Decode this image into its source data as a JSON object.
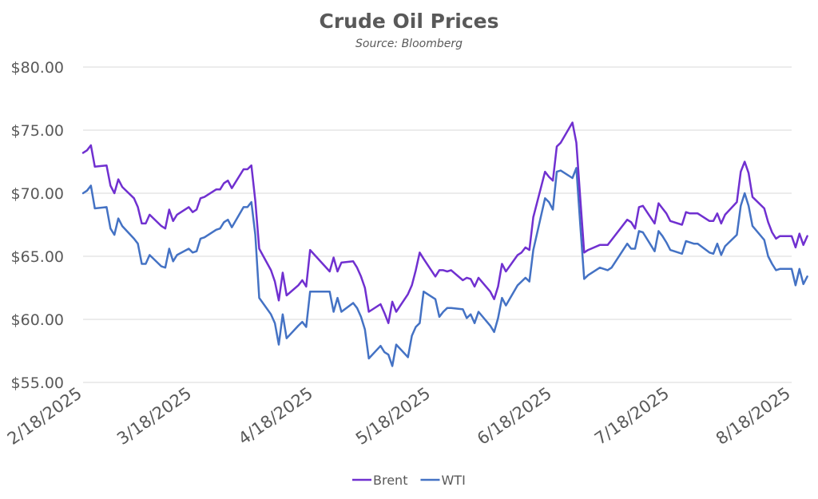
{
  "chart_data": {
    "type": "line",
    "title": "Crude Oil Prices",
    "subtitle": "Source: Bloomberg",
    "xlabel": "",
    "ylabel": "",
    "x_tick_labels": [
      "2/18/2025",
      "3/18/2025",
      "4/18/2025",
      "5/18/2025",
      "6/18/2025",
      "7/18/2025",
      "8/18/2025"
    ],
    "x_tick_dates": [
      "2025-02-18",
      "2025-03-18",
      "2025-04-18",
      "2025-05-18",
      "2025-06-18",
      "2025-07-18",
      "2025-08-18"
    ],
    "y_tick_labels": [
      "$55.00",
      "$60.00",
      "$65.00",
      "$70.00",
      "$75.00",
      "$80.00"
    ],
    "ylim": [
      55,
      80
    ],
    "xlim": [
      "2025-02-18",
      "2025-08-18"
    ],
    "grid": "horizontal",
    "legend_position": "bottom",
    "series": [
      {
        "name": "Brent",
        "color": "#7030d0",
        "points": [
          [
            "2025-02-18",
            73.2
          ],
          [
            "2025-02-19",
            73.4
          ],
          [
            "2025-02-20",
            73.8
          ],
          [
            "2025-02-21",
            72.1
          ],
          [
            "2025-02-24",
            72.2
          ],
          [
            "2025-02-25",
            70.6
          ],
          [
            "2025-02-26",
            70.0
          ],
          [
            "2025-02-27",
            71.1
          ],
          [
            "2025-02-28",
            70.5
          ],
          [
            "2025-03-03",
            69.6
          ],
          [
            "2025-03-04",
            68.9
          ],
          [
            "2025-03-05",
            67.6
          ],
          [
            "2025-03-06",
            67.6
          ],
          [
            "2025-03-07",
            68.3
          ],
          [
            "2025-03-10",
            67.4
          ],
          [
            "2025-03-11",
            67.2
          ],
          [
            "2025-03-12",
            68.7
          ],
          [
            "2025-03-13",
            67.8
          ],
          [
            "2025-03-14",
            68.3
          ],
          [
            "2025-03-17",
            68.9
          ],
          [
            "2025-03-18",
            68.5
          ],
          [
            "2025-03-19",
            68.7
          ],
          [
            "2025-03-20",
            69.6
          ],
          [
            "2025-03-21",
            69.7
          ],
          [
            "2025-03-24",
            70.3
          ],
          [
            "2025-03-25",
            70.3
          ],
          [
            "2025-03-26",
            70.8
          ],
          [
            "2025-03-27",
            71.0
          ],
          [
            "2025-03-28",
            70.4
          ],
          [
            "2025-03-31",
            71.9
          ],
          [
            "2025-04-01",
            71.9
          ],
          [
            "2025-04-02",
            72.2
          ],
          [
            "2025-04-03",
            69.4
          ],
          [
            "2025-04-04",
            65.6
          ],
          [
            "2025-04-07",
            63.9
          ],
          [
            "2025-04-08",
            63.0
          ],
          [
            "2025-04-09",
            61.5
          ],
          [
            "2025-04-10",
            63.7
          ],
          [
            "2025-04-11",
            61.9
          ],
          [
            "2025-04-14",
            62.7
          ],
          [
            "2025-04-15",
            63.1
          ],
          [
            "2025-04-16",
            62.6
          ],
          [
            "2025-04-17",
            65.5
          ],
          [
            "2025-04-22",
            63.8
          ],
          [
            "2025-04-23",
            64.9
          ],
          [
            "2025-04-24",
            63.8
          ],
          [
            "2025-04-25",
            64.5
          ],
          [
            "2025-04-28",
            64.6
          ],
          [
            "2025-04-29",
            64.1
          ],
          [
            "2025-04-30",
            63.4
          ],
          [
            "2025-05-01",
            62.5
          ],
          [
            "2025-05-02",
            60.6
          ],
          [
            "2025-05-05",
            61.2
          ],
          [
            "2025-05-06",
            60.5
          ],
          [
            "2025-05-07",
            59.7
          ],
          [
            "2025-05-08",
            61.4
          ],
          [
            "2025-05-09",
            60.6
          ],
          [
            "2025-05-12",
            62.0
          ],
          [
            "2025-05-13",
            62.7
          ],
          [
            "2025-05-14",
            63.9
          ],
          [
            "2025-05-15",
            65.3
          ],
          [
            "2025-05-16",
            64.8
          ],
          [
            "2025-05-19",
            63.4
          ],
          [
            "2025-05-20",
            63.9
          ],
          [
            "2025-05-21",
            63.9
          ],
          [
            "2025-05-22",
            63.8
          ],
          [
            "2025-05-23",
            63.9
          ],
          [
            "2025-05-26",
            63.1
          ],
          [
            "2025-05-27",
            63.3
          ],
          [
            "2025-05-28",
            63.2
          ],
          [
            "2025-05-29",
            62.6
          ],
          [
            "2025-05-30",
            63.3
          ],
          [
            "2025-06-02",
            62.2
          ],
          [
            "2025-06-03",
            61.6
          ],
          [
            "2025-06-04",
            62.6
          ],
          [
            "2025-06-05",
            64.4
          ],
          [
            "2025-06-06",
            63.8
          ],
          [
            "2025-06-09",
            65.1
          ],
          [
            "2025-06-10",
            65.3
          ],
          [
            "2025-06-11",
            65.7
          ],
          [
            "2025-06-12",
            65.5
          ],
          [
            "2025-06-13",
            68.1
          ],
          [
            "2025-06-16",
            71.7
          ],
          [
            "2025-06-17",
            71.3
          ],
          [
            "2025-06-18",
            71.0
          ],
          [
            "2025-06-19",
            73.7
          ],
          [
            "2025-06-20",
            74.0
          ],
          [
            "2025-06-23",
            75.6
          ],
          [
            "2025-06-24",
            74.0
          ],
          [
            "2025-06-25",
            69.6
          ],
          [
            "2025-06-26",
            65.3
          ],
          [
            "2025-06-27",
            65.5
          ],
          [
            "2025-06-30",
            65.9
          ],
          [
            "2025-07-01",
            65.9
          ],
          [
            "2025-07-02",
            65.9
          ],
          [
            "2025-07-03",
            66.3
          ],
          [
            "2025-07-07",
            67.9
          ],
          [
            "2025-07-08",
            67.7
          ],
          [
            "2025-07-09",
            67.2
          ],
          [
            "2025-07-10",
            68.9
          ],
          [
            "2025-07-11",
            69.0
          ],
          [
            "2025-07-14",
            67.6
          ],
          [
            "2025-07-15",
            69.2
          ],
          [
            "2025-07-16",
            68.8
          ],
          [
            "2025-07-17",
            68.4
          ],
          [
            "2025-07-18",
            67.8
          ],
          [
            "2025-07-21",
            67.5
          ],
          [
            "2025-07-22",
            68.5
          ],
          [
            "2025-07-23",
            68.4
          ],
          [
            "2025-07-24",
            68.4
          ],
          [
            "2025-07-25",
            68.4
          ],
          [
            "2025-07-28",
            67.8
          ],
          [
            "2025-07-29",
            67.8
          ],
          [
            "2025-07-30",
            68.4
          ],
          [
            "2025-07-31",
            67.6
          ],
          [
            "2025-08-01",
            68.3
          ],
          [
            "2025-08-04",
            69.3
          ],
          [
            "2025-08-05",
            71.7
          ],
          [
            "2025-08-06",
            72.5
          ],
          [
            "2025-08-07",
            71.6
          ],
          [
            "2025-08-08",
            69.7
          ],
          [
            "2025-08-11",
            68.8
          ],
          [
            "2025-08-12",
            67.7
          ],
          [
            "2025-08-13",
            66.9
          ],
          [
            "2025-08-14",
            66.4
          ],
          [
            "2025-08-15",
            66.6
          ],
          [
            "2025-08-18",
            66.6
          ],
          [
            "2025-08-19",
            65.7
          ],
          [
            "2025-08-20",
            66.8
          ],
          [
            "2025-08-21",
            65.9
          ],
          [
            "2025-08-22",
            66.6
          ]
        ]
      },
      {
        "name": "WTI",
        "color": "#4472c4",
        "points": [
          [
            "2025-02-18",
            70.0
          ],
          [
            "2025-02-19",
            70.2
          ],
          [
            "2025-02-20",
            70.6
          ],
          [
            "2025-02-21",
            68.8
          ],
          [
            "2025-02-24",
            68.9
          ],
          [
            "2025-02-25",
            67.2
          ],
          [
            "2025-02-26",
            66.7
          ],
          [
            "2025-02-27",
            68.0
          ],
          [
            "2025-02-28",
            67.4
          ],
          [
            "2025-03-03",
            66.4
          ],
          [
            "2025-03-04",
            66.0
          ],
          [
            "2025-03-05",
            64.4
          ],
          [
            "2025-03-06",
            64.4
          ],
          [
            "2025-03-07",
            65.1
          ],
          [
            "2025-03-10",
            64.2
          ],
          [
            "2025-03-11",
            64.1
          ],
          [
            "2025-03-12",
            65.6
          ],
          [
            "2025-03-13",
            64.6
          ],
          [
            "2025-03-14",
            65.1
          ],
          [
            "2025-03-17",
            65.6
          ],
          [
            "2025-03-18",
            65.3
          ],
          [
            "2025-03-19",
            65.4
          ],
          [
            "2025-03-20",
            66.4
          ],
          [
            "2025-03-21",
            66.5
          ],
          [
            "2025-03-24",
            67.1
          ],
          [
            "2025-03-25",
            67.2
          ],
          [
            "2025-03-26",
            67.7
          ],
          [
            "2025-03-27",
            67.9
          ],
          [
            "2025-03-28",
            67.3
          ],
          [
            "2025-03-31",
            68.9
          ],
          [
            "2025-04-01",
            68.9
          ],
          [
            "2025-04-02",
            69.3
          ],
          [
            "2025-04-03",
            66.7
          ],
          [
            "2025-04-04",
            61.7
          ],
          [
            "2025-04-07",
            60.4
          ],
          [
            "2025-04-08",
            59.7
          ],
          [
            "2025-04-09",
            58.0
          ],
          [
            "2025-04-10",
            60.4
          ],
          [
            "2025-04-11",
            58.5
          ],
          [
            "2025-04-14",
            59.5
          ],
          [
            "2025-04-15",
            59.8
          ],
          [
            "2025-04-16",
            59.4
          ],
          [
            "2025-04-17",
            62.2
          ],
          [
            "2025-04-22",
            62.2
          ],
          [
            "2025-04-23",
            60.6
          ],
          [
            "2025-04-24",
            61.7
          ],
          [
            "2025-04-25",
            60.6
          ],
          [
            "2025-04-28",
            61.3
          ],
          [
            "2025-04-29",
            60.9
          ],
          [
            "2025-04-30",
            60.2
          ],
          [
            "2025-05-01",
            59.2
          ],
          [
            "2025-05-02",
            56.9
          ],
          [
            "2025-05-05",
            57.9
          ],
          [
            "2025-05-06",
            57.4
          ],
          [
            "2025-05-07",
            57.2
          ],
          [
            "2025-05-08",
            56.3
          ],
          [
            "2025-05-09",
            58.0
          ],
          [
            "2025-05-12",
            57.0
          ],
          [
            "2025-05-13",
            58.7
          ],
          [
            "2025-05-14",
            59.4
          ],
          [
            "2025-05-15",
            59.7
          ],
          [
            "2025-05-16",
            62.2
          ],
          [
            "2025-05-19",
            61.6
          ],
          [
            "2025-05-20",
            60.2
          ],
          [
            "2025-05-21",
            60.6
          ],
          [
            "2025-05-22",
            60.9
          ],
          [
            "2025-05-23",
            60.9
          ],
          [
            "2025-05-26",
            60.8
          ],
          [
            "2025-05-27",
            60.1
          ],
          [
            "2025-05-28",
            60.4
          ],
          [
            "2025-05-29",
            59.7
          ],
          [
            "2025-05-30",
            60.6
          ],
          [
            "2025-06-02",
            59.5
          ],
          [
            "2025-06-03",
            59.0
          ],
          [
            "2025-06-04",
            60.1
          ],
          [
            "2025-06-05",
            61.7
          ],
          [
            "2025-06-06",
            61.1
          ],
          [
            "2025-06-09",
            62.7
          ],
          [
            "2025-06-10",
            63.0
          ],
          [
            "2025-06-11",
            63.3
          ],
          [
            "2025-06-12",
            63.0
          ],
          [
            "2025-06-13",
            65.5
          ],
          [
            "2025-06-16",
            69.6
          ],
          [
            "2025-06-17",
            69.3
          ],
          [
            "2025-06-18",
            68.7
          ],
          [
            "2025-06-19",
            71.7
          ],
          [
            "2025-06-20",
            71.8
          ],
          [
            "2025-06-23",
            71.2
          ],
          [
            "2025-06-24",
            72.0
          ],
          [
            "2025-06-25",
            67.5
          ],
          [
            "2025-06-26",
            63.2
          ],
          [
            "2025-06-27",
            63.5
          ],
          [
            "2025-06-30",
            64.1
          ],
          [
            "2025-07-01",
            64.0
          ],
          [
            "2025-07-02",
            63.9
          ],
          [
            "2025-07-03",
            64.1
          ],
          [
            "2025-07-07",
            66.0
          ],
          [
            "2025-07-08",
            65.6
          ],
          [
            "2025-07-09",
            65.6
          ],
          [
            "2025-07-10",
            67.0
          ],
          [
            "2025-07-11",
            66.9
          ],
          [
            "2025-07-14",
            65.4
          ],
          [
            "2025-07-15",
            67.0
          ],
          [
            "2025-07-16",
            66.6
          ],
          [
            "2025-07-17",
            66.1
          ],
          [
            "2025-07-18",
            65.5
          ],
          [
            "2025-07-21",
            65.2
          ],
          [
            "2025-07-22",
            66.2
          ],
          [
            "2025-07-23",
            66.1
          ],
          [
            "2025-07-24",
            66.0
          ],
          [
            "2025-07-25",
            66.0
          ],
          [
            "2025-07-28",
            65.3
          ],
          [
            "2025-07-29",
            65.2
          ],
          [
            "2025-07-30",
            66.0
          ],
          [
            "2025-07-31",
            65.1
          ],
          [
            "2025-08-01",
            65.8
          ],
          [
            "2025-08-04",
            66.7
          ],
          [
            "2025-08-05",
            69.0
          ],
          [
            "2025-08-06",
            70.0
          ],
          [
            "2025-08-07",
            69.0
          ],
          [
            "2025-08-08",
            67.4
          ],
          [
            "2025-08-11",
            66.3
          ],
          [
            "2025-08-12",
            65.0
          ],
          [
            "2025-08-13",
            64.4
          ],
          [
            "2025-08-14",
            63.9
          ],
          [
            "2025-08-15",
            64.0
          ],
          [
            "2025-08-18",
            64.0
          ],
          [
            "2025-08-19",
            62.7
          ],
          [
            "2025-08-20",
            64.0
          ],
          [
            "2025-08-21",
            62.8
          ],
          [
            "2025-08-22",
            63.4
          ]
        ]
      }
    ]
  }
}
